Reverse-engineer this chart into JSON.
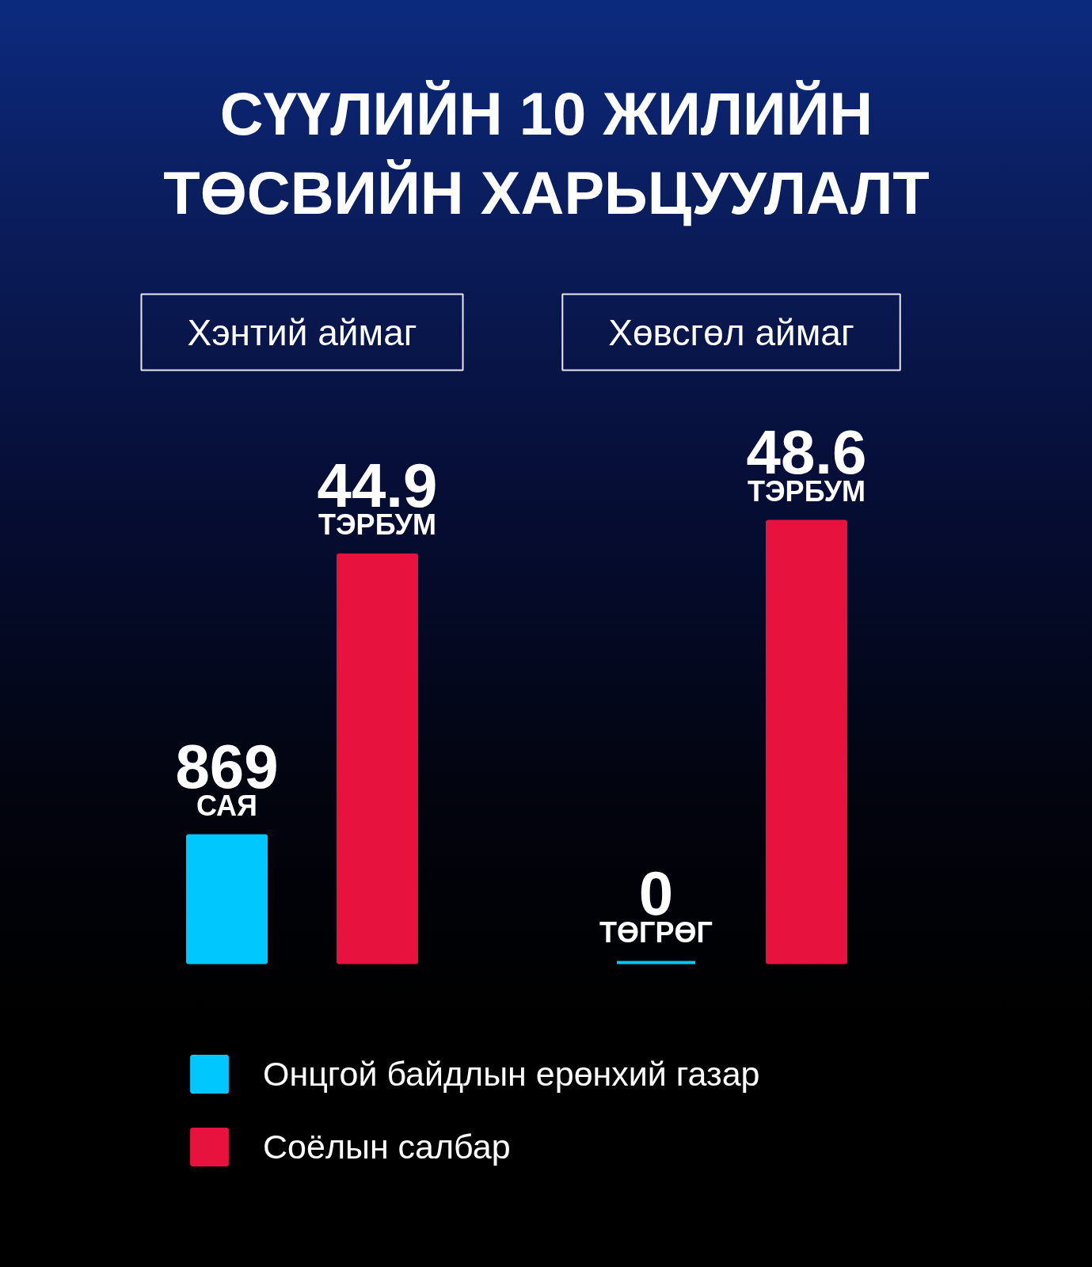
{
  "chart_data": {
    "type": "bar",
    "title": "СҮҮЛИЙН 10 ЖИЛИЙН ТӨСВИЙН ХАРЬЦУУЛАЛТ",
    "categories": [
      "Хэнтий аймаг",
      "Хөвсгөл аймаг"
    ],
    "series": [
      {
        "name": "Онцгой байдлын ерөнхий газар",
        "color": "#00c8ff",
        "axis": "y2",
        "values": [
          869,
          0
        ],
        "value_labels": [
          "869\nСАЯ",
          "0\nТӨГРӨГ"
        ]
      },
      {
        "name": "Соёлын салбар",
        "color": "#e8123e",
        "values": [
          44.9,
          48.6
        ],
        "value_labels": [
          "44.9\nТЭРБУМ",
          "48.6\nТЭРБУМ"
        ]
      }
    ],
    "legend": "bottom left"
  }
}
